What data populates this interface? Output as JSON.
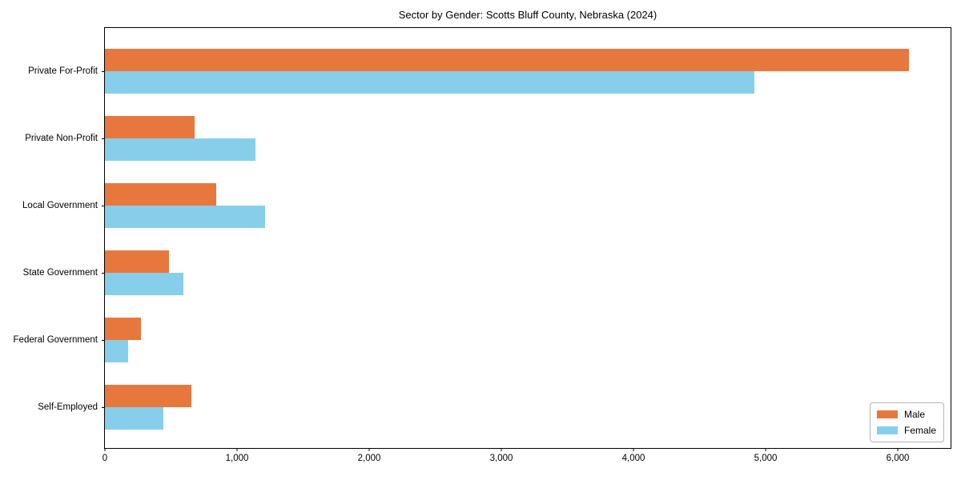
{
  "chart_data": {
    "type": "bar",
    "orientation": "horizontal",
    "title": "Sector by Gender: Scotts Bluff County, Nebraska (2024)",
    "categories": [
      "Private For-Profit",
      "Private Non-Profit",
      "Local Government",
      "State Government",
      "Federal Government",
      "Self-Employed"
    ],
    "series": [
      {
        "name": "Male",
        "color": "#e8773d",
        "values": [
          6085,
          680,
          840,
          485,
          270,
          655
        ]
      },
      {
        "name": "Female",
        "color": "#87ceeb",
        "values": [
          4915,
          1140,
          1210,
          595,
          175,
          440
        ]
      }
    ],
    "xlabel": "",
    "ylabel": "",
    "xlim": [
      0,
      6400
    ],
    "x_tick_values": [
      0,
      1000,
      2000,
      3000,
      4000,
      5000,
      6000
    ],
    "x_tick_labels": [
      "0",
      "1,000",
      "2,000",
      "3,000",
      "4,000",
      "5,000",
      "6,000"
    ],
    "grid": false,
    "legend_position": "lower right"
  }
}
